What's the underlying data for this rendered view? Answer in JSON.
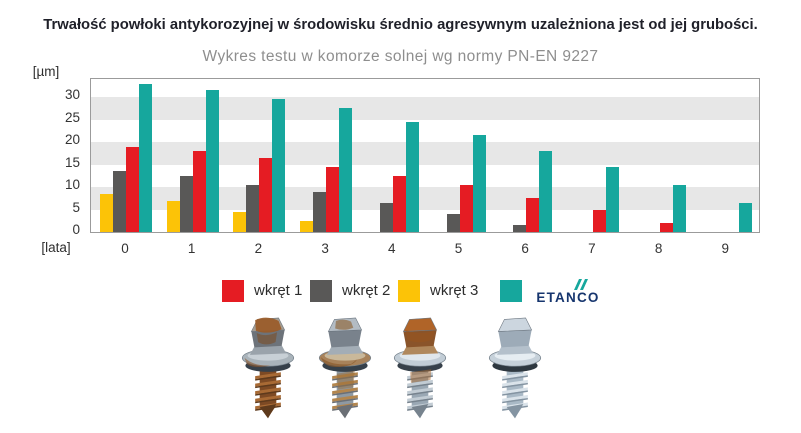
{
  "header": {
    "title": "Trwałość powłoki antykorozyjnej w środowisku średnio agresywnym uzależniona jest od jej grubości.",
    "subtitle": "Wykres testu w komorze solnej wg normy PN-EN 9227"
  },
  "chart_data": {
    "type": "bar",
    "title": "Trwałość powłoki antykorozyjnej w środowisku średnio agresywnym uzależniona jest od jej grubości.",
    "subtitle": "Wykres testu w komorze solnej wg normy PN-EN 9227",
    "y_unit_label": "[µm]",
    "x_unit_label": "[lata]",
    "categories": [
      "0",
      "1",
      "2",
      "3",
      "4",
      "5",
      "6",
      "7",
      "8",
      "9"
    ],
    "yticks": [
      30,
      25,
      20,
      15,
      10,
      5,
      0
    ],
    "ylim": [
      0,
      34
    ],
    "grid": "striped-bands",
    "grid_bands": [
      [
        5,
        10
      ],
      [
        15,
        20
      ],
      [
        25,
        30
      ]
    ],
    "legend_position": "bottom",
    "series": [
      {
        "name": "wkręt 1",
        "color": "#e51c23",
        "values": [
          19,
          18,
          16.5,
          14.5,
          12.5,
          10.5,
          7.5,
          5,
          2,
          0
        ]
      },
      {
        "name": "wkręt 2",
        "color": "#595857",
        "values": [
          13.5,
          12.5,
          10.5,
          9,
          6.5,
          4,
          1.5,
          0,
          0,
          0
        ]
      },
      {
        "name": "wkręt 3",
        "color": "#fcc307",
        "values": [
          8.5,
          7,
          4.5,
          2.5,
          0,
          0,
          0,
          0,
          0,
          0
        ]
      },
      {
        "name": "ETANCO",
        "color": "#16a79d",
        "values": [
          33,
          31.5,
          29.5,
          27.5,
          24.5,
          21.5,
          18,
          14.5,
          10.5,
          6.5
        ]
      }
    ]
  },
  "legend": {
    "items": [
      {
        "label": "wkręt 1",
        "color": "#e51c23"
      },
      {
        "label": "wkręt 2",
        "color": "#595857"
      },
      {
        "label": "wkręt 3",
        "color": "#fcc307"
      },
      {
        "label": "ETANCO",
        "color": "#16a79d"
      }
    ],
    "logo_text": "ETANCO"
  },
  "colors": {
    "title_text": "#1f2029",
    "subtitle_text": "#8e8e8e",
    "stripe_band": "#e7e7e7",
    "plot_border": "#9b9b9b",
    "logo_navy": "#16356e",
    "logo_flash_teal": "#16a79d"
  },
  "footer_icons": [
    "rusty-screw-photo-1",
    "rusty-screw-photo-2",
    "rusty-screw-photo-3",
    "clean-etanco-screw-photo"
  ]
}
